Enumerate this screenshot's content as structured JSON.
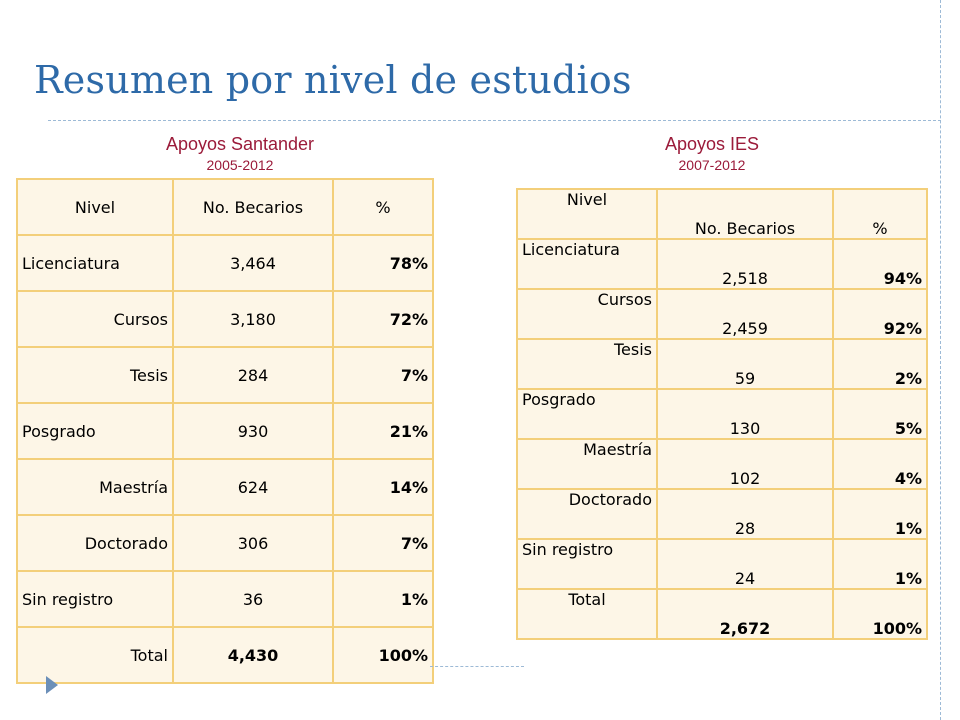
{
  "title": "Resumen por nivel de estudios",
  "colors": {
    "title": "#2e6aa8",
    "caption": "#9b1b3a",
    "cell_border": "#f3cf7a",
    "cell_fill": "#fdf6e7"
  },
  "left": {
    "caption": "Apoyos Santander",
    "years": "2005-2012",
    "headers": [
      "Nivel",
      "No. Becarios",
      "%"
    ],
    "rows": [
      [
        "Licenciatura",
        "3,464",
        "78%"
      ],
      [
        "Cursos",
        "3,180",
        "72%"
      ],
      [
        "Tesis",
        "284",
        "7%"
      ],
      [
        "Posgrado",
        "930",
        "21%"
      ],
      [
        "Maestría",
        "624",
        "14%"
      ],
      [
        "Doctorado",
        "306",
        "7%"
      ],
      [
        "Sin registro",
        "36",
        "1%"
      ],
      [
        "Total",
        "4,430",
        "100%"
      ]
    ]
  },
  "right": {
    "caption": "Apoyos IES",
    "years": "2007-2012",
    "headers": [
      "Nivel",
      "No. Becarios",
      "%"
    ],
    "rows": [
      [
        "Licenciatura",
        "2,518",
        "94%"
      ],
      [
        "Cursos",
        "2,459",
        "92%"
      ],
      [
        "Tesis",
        "59",
        "2%"
      ],
      [
        "Posgrado",
        "130",
        "5%"
      ],
      [
        "Maestría",
        "102",
        "4%"
      ],
      [
        "Doctorado",
        "28",
        "1%"
      ],
      [
        "Sin registro",
        "24",
        "1%"
      ],
      [
        "Total",
        "2,672",
        "100%"
      ]
    ]
  }
}
